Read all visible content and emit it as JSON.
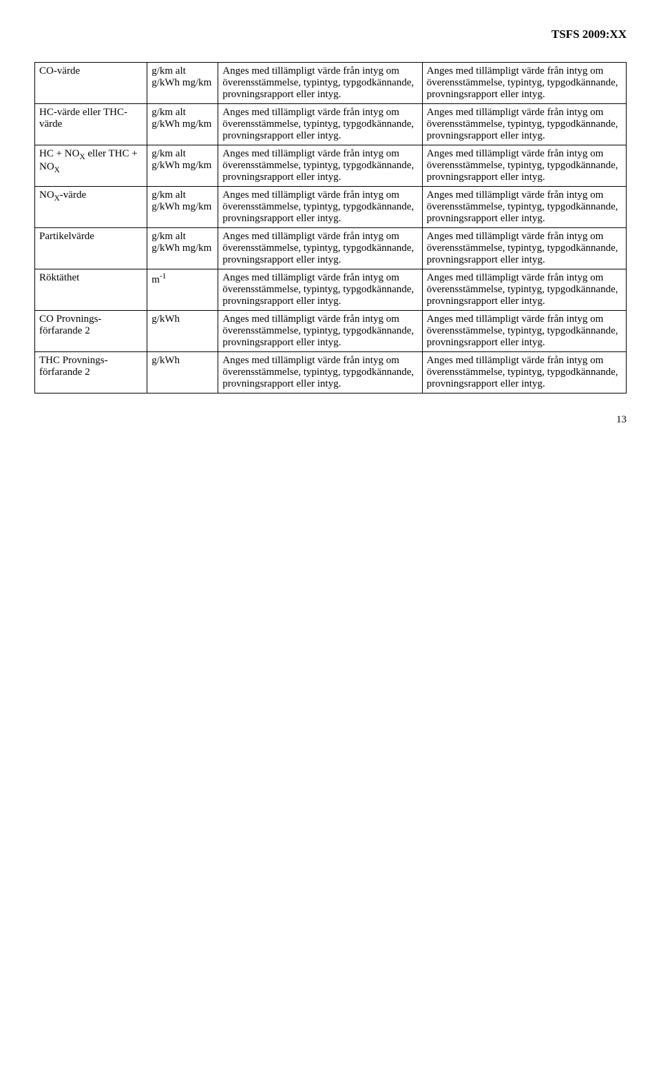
{
  "header": {
    "title": "TSFS 2009:XX"
  },
  "pageNumber": "13",
  "stdText": "Anges med tillämpligt värde från intyg om överensstämmelse, typintyg, typgodkännande, provningsrapport eller intyg.",
  "unit_multi": "g/km alt g/kWh mg/km",
  "unit_m": "m",
  "unit_m_sup": "-1",
  "unit_gkwh": "g/kWh",
  "rows": {
    "r1": {
      "label": "CO-värde"
    },
    "r2": {
      "label": "HC-värde eller THC-värde"
    },
    "r3": {
      "label_pre": "HC + NO",
      "label_mid": " eller THC + NO",
      "sub": "X"
    },
    "r4": {
      "label_pre": "NO",
      "sub": "X",
      "label_post": "-värde"
    },
    "r5": {
      "label": "Partikelvärde"
    },
    "r6": {
      "label": "Röktäthet"
    },
    "r7": {
      "label": "CO Provnings-förfarande 2"
    },
    "r8": {
      "label": "THC Provnings-förfarande 2"
    }
  }
}
